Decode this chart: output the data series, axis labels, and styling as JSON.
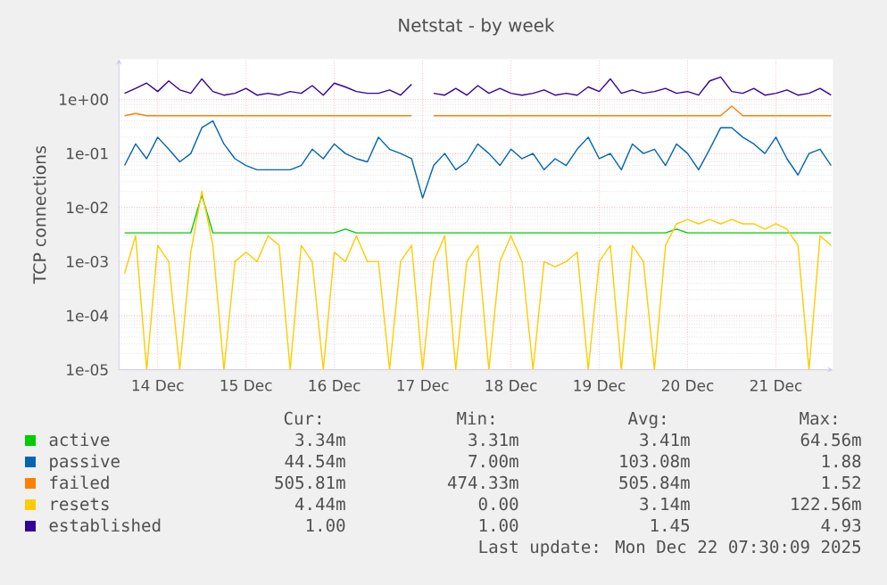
{
  "chart_data": {
    "type": "line",
    "title": "Netstat - by week",
    "ylabel": "TCP connections",
    "log": "y",
    "grid": true,
    "legend": "bottom",
    "line_style": "solid",
    "xlim": [
      "2025-12-14T01:30",
      "2025-12-22T03:30"
    ],
    "xticks": [
      {
        "value": "2025-12-14T12:00",
        "label": "14 Dec"
      },
      {
        "value": "2025-12-15T12:00",
        "label": "15 Dec"
      },
      {
        "value": "2025-12-16T12:00",
        "label": "16 Dec"
      },
      {
        "value": "2025-12-17T12:00",
        "label": "17 Dec"
      },
      {
        "value": "2025-12-18T12:00",
        "label": "18 Dec"
      },
      {
        "value": "2025-12-19T12:00",
        "label": "19 Dec"
      },
      {
        "value": "2025-12-20T12:00",
        "label": "20 Dec"
      },
      {
        "value": "2025-12-21T12:00",
        "label": "21 Dec"
      }
    ],
    "ylim": [
      1e-05,
      5.5
    ],
    "yticks": [
      {
        "value": 1e-05,
        "label": "1e-05"
      },
      {
        "value": 0.0001,
        "label": "1e-04"
      },
      {
        "value": 0.001,
        "label": "1e-03"
      },
      {
        "value": 0.01,
        "label": "1e-02"
      },
      {
        "value": 0.1,
        "label": "1e-01"
      },
      {
        "value": 1,
        "label": "1e+00"
      }
    ],
    "x": [
      "2025-12-14T03:00",
      "2025-12-14T06:00",
      "2025-12-14T09:00",
      "2025-12-14T12:00",
      "2025-12-14T15:00",
      "2025-12-14T18:00",
      "2025-12-14T21:00",
      "2025-12-15T00:00",
      "2025-12-15T03:00",
      "2025-12-15T06:00",
      "2025-12-15T09:00",
      "2025-12-15T12:00",
      "2025-12-15T15:00",
      "2025-12-15T18:00",
      "2025-12-15T21:00",
      "2025-12-16T00:00",
      "2025-12-16T03:00",
      "2025-12-16T06:00",
      "2025-12-16T09:00",
      "2025-12-16T12:00",
      "2025-12-16T15:00",
      "2025-12-16T18:00",
      "2025-12-16T21:00",
      "2025-12-17T00:00",
      "2025-12-17T03:00",
      "2025-12-17T06:00",
      "2025-12-17T09:00",
      "2025-12-17T12:00",
      "2025-12-17T15:00",
      "2025-12-17T18:00",
      "2025-12-17T21:00",
      "2025-12-18T00:00",
      "2025-12-18T03:00",
      "2025-12-18T06:00",
      "2025-12-18T09:00",
      "2025-12-18T12:00",
      "2025-12-18T15:00",
      "2025-12-18T18:00",
      "2025-12-18T21:00",
      "2025-12-19T00:00",
      "2025-12-19T03:00",
      "2025-12-19T06:00",
      "2025-12-19T09:00",
      "2025-12-19T12:00",
      "2025-12-19T15:00",
      "2025-12-19T18:00",
      "2025-12-19T21:00",
      "2025-12-20T00:00",
      "2025-12-20T03:00",
      "2025-12-20T06:00",
      "2025-12-20T09:00",
      "2025-12-20T12:00",
      "2025-12-20T15:00",
      "2025-12-20T18:00",
      "2025-12-20T21:00",
      "2025-12-21T00:00",
      "2025-12-21T03:00",
      "2025-12-21T06:00",
      "2025-12-21T09:00",
      "2025-12-21T12:00",
      "2025-12-21T15:00",
      "2025-12-21T18:00",
      "2025-12-21T21:00",
      "2025-12-22T00:00",
      "2025-12-22T03:00"
    ],
    "series": [
      {
        "name": "active",
        "color": "#00cc00",
        "values": [
          0.0034,
          0.0034,
          0.0034,
          0.0034,
          0.0034,
          0.0034,
          0.0034,
          0.017,
          0.0034,
          0.0034,
          0.0034,
          0.0034,
          0.0034,
          0.0034,
          0.0034,
          0.0034,
          0.0034,
          0.0034,
          0.0034,
          0.0034,
          0.004,
          0.0034,
          0.0034,
          0.0034,
          0.0034,
          0.0034,
          0.0034,
          0.0034,
          0.0034,
          0.0034,
          0.0034,
          0.0034,
          0.0034,
          0.0034,
          0.0034,
          0.0034,
          0.0034,
          0.0034,
          0.0034,
          0.0034,
          0.0034,
          0.0034,
          0.0034,
          0.0034,
          0.0034,
          0.0034,
          0.0034,
          0.0034,
          0.0034,
          0.0034,
          0.004,
          0.0034,
          0.0034,
          0.0034,
          0.0034,
          0.0034,
          0.0034,
          0.0034,
          0.0034,
          0.0034,
          0.0034,
          0.0034,
          0.0034,
          0.0034,
          0.0034
        ]
      },
      {
        "name": "passive",
        "color": "#0066b3",
        "values": [
          0.06,
          0.15,
          0.08,
          0.2,
          0.12,
          0.07,
          0.1,
          0.3,
          0.4,
          0.15,
          0.08,
          0.06,
          0.05,
          0.05,
          0.05,
          0.05,
          0.06,
          0.12,
          0.08,
          0.15,
          0.1,
          0.08,
          0.07,
          0.2,
          0.12,
          0.1,
          0.08,
          0.015,
          0.06,
          0.1,
          0.05,
          0.07,
          0.15,
          0.1,
          0.06,
          0.12,
          0.08,
          0.1,
          0.05,
          0.08,
          0.06,
          0.12,
          0.2,
          0.08,
          0.1,
          0.05,
          0.15,
          0.1,
          0.12,
          0.06,
          0.15,
          0.1,
          0.05,
          0.12,
          0.3,
          0.3,
          0.2,
          0.15,
          0.1,
          0.2,
          0.08,
          0.04,
          0.1,
          0.12,
          0.06
        ]
      },
      {
        "name": "failed",
        "color": "#ff8000",
        "values": [
          0.5,
          0.55,
          0.5,
          0.5,
          0.5,
          0.5,
          0.5,
          0.5,
          0.5,
          0.5,
          0.5,
          0.5,
          0.5,
          0.5,
          0.5,
          0.5,
          0.5,
          0.5,
          0.5,
          0.5,
          0.5,
          0.5,
          0.5,
          0.5,
          0.5,
          0.5,
          0.5,
          null,
          0.5,
          0.5,
          0.5,
          0.5,
          0.5,
          0.5,
          0.5,
          0.5,
          0.5,
          0.5,
          0.5,
          0.5,
          0.5,
          0.5,
          0.5,
          0.5,
          0.5,
          0.5,
          0.5,
          0.5,
          0.5,
          0.5,
          0.5,
          0.5,
          0.5,
          0.5,
          0.5,
          0.75,
          0.5,
          0.5,
          0.5,
          0.5,
          0.5,
          0.5,
          0.5,
          0.5,
          0.5
        ]
      },
      {
        "name": "resets",
        "color": "#ffcc00",
        "values": [
          0.0006,
          0.003,
          1e-05,
          0.002,
          0.001,
          1e-05,
          0.0015,
          0.02,
          0.002,
          1e-05,
          0.001,
          0.0015,
          0.001,
          0.003,
          0.002,
          1e-05,
          0.002,
          0.001,
          1e-05,
          0.0015,
          0.001,
          0.003,
          0.001,
          0.001,
          1e-05,
          0.001,
          0.002,
          1e-05,
          0.001,
          0.003,
          1e-05,
          0.001,
          0.002,
          1e-05,
          0.001,
          0.003,
          0.001,
          1e-05,
          0.001,
          0.0008,
          0.001,
          0.0015,
          1e-05,
          0.001,
          0.002,
          1e-05,
          0.002,
          0.001,
          1e-05,
          0.002,
          0.005,
          0.006,
          0.005,
          0.006,
          0.005,
          0.006,
          0.005,
          0.005,
          0.004,
          0.005,
          0.004,
          0.002,
          1e-05,
          0.003,
          0.002
        ]
      },
      {
        "name": "established",
        "color": "#330099",
        "values": [
          1.3,
          1.6,
          2.0,
          1.4,
          2.2,
          1.5,
          1.3,
          2.4,
          1.4,
          1.2,
          1.3,
          1.6,
          1.2,
          1.3,
          1.2,
          1.4,
          1.3,
          1.8,
          1.2,
          2.0,
          1.7,
          1.4,
          1.3,
          1.3,
          1.5,
          1.2,
          1.9,
          null,
          1.3,
          1.2,
          1.6,
          1.2,
          1.8,
          1.3,
          1.6,
          1.3,
          1.2,
          1.3,
          1.5,
          1.2,
          1.3,
          1.2,
          1.7,
          1.4,
          2.4,
          1.3,
          1.5,
          1.3,
          1.4,
          1.6,
          1.3,
          1.4,
          1.2,
          2.2,
          2.6,
          1.4,
          1.3,
          1.6,
          1.2,
          1.3,
          1.5,
          1.2,
          1.3,
          1.6,
          1.2
        ]
      }
    ],
    "annotations": [
      "Cur:",
      "Min:",
      "Avg:",
      "Max:",
      "3.34m",
      "3.31m",
      "3.41m",
      "64.56m",
      "44.54m",
      "7.00m",
      "103.08m",
      "1.88",
      "505.81m",
      "474.33m",
      "505.84m",
      "1.52",
      "4.44m",
      "0.00",
      "3.14m",
      "122.56m",
      "1.00",
      "1.00",
      "1.45",
      "4.93",
      "Last update: Mon Dec 22 07:30:09 2025"
    ]
  }
}
